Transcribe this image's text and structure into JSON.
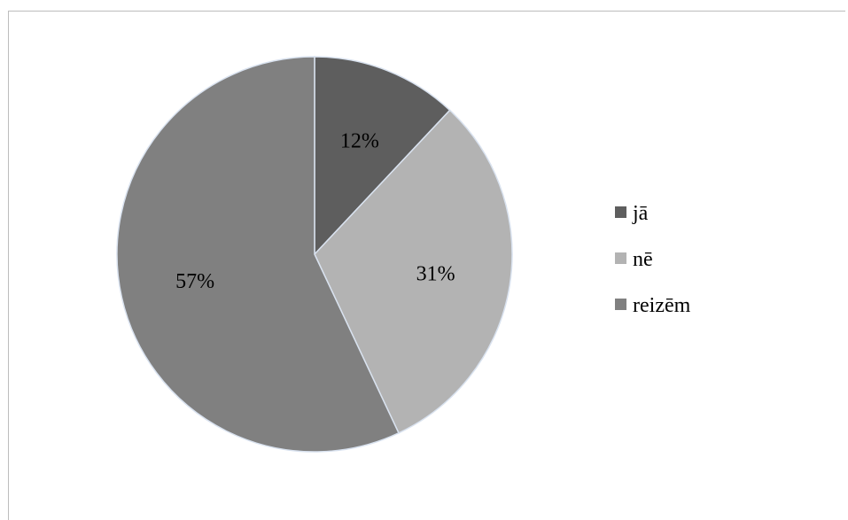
{
  "chart_data": {
    "type": "pie",
    "categories": [
      "jā",
      "nē",
      "reizēm"
    ],
    "values": [
      12,
      31,
      57
    ],
    "labels": [
      "12%",
      "31%",
      "57%"
    ],
    "colors": [
      "#5e5e5e",
      "#b3b3b3",
      "#808080"
    ],
    "slice_border_color": "#d9e2ef",
    "legend_position": "right",
    "start_angle_deg": 0,
    "direction": "clockwise"
  }
}
